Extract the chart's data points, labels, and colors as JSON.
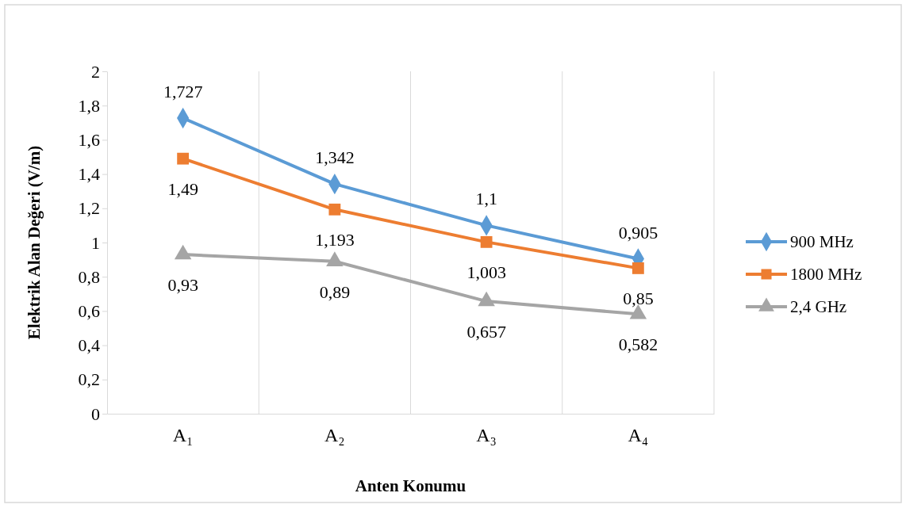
{
  "chart_data": {
    "type": "line",
    "xlabel": "Anten Konumu",
    "ylabel": "Elektrik Alan Değeri (V/m)",
    "categories": [
      "A₁",
      "A₂",
      "A₃",
      "A₄"
    ],
    "series": [
      {
        "name": "900 MHz",
        "color": "#5b9bd5",
        "marker": "diamond",
        "values": [
          1.727,
          1.342,
          1.1,
          0.905
        ],
        "value_labels": [
          "1,727",
          "1,342",
          "1,1",
          "0,905"
        ]
      },
      {
        "name": "1800 MHz",
        "color": "#ed7d31",
        "marker": "square",
        "values": [
          1.49,
          1.193,
          1.003,
          0.85
        ],
        "value_labels": [
          "1,49",
          "1,193",
          "1,003",
          "0,85"
        ]
      },
      {
        "name": "2,4 GHz",
        "color": "#a5a5a5",
        "marker": "triangle",
        "values": [
          0.93,
          0.89,
          0.657,
          0.582
        ],
        "value_labels": [
          "0,93",
          "0,89",
          "0,657",
          "0,582"
        ]
      }
    ],
    "ylim": [
      0,
      2
    ],
    "yticks": [
      0,
      {
        "value": 0.2,
        "label": "0,2"
      },
      {
        "value": 0.4,
        "label": "0,4"
      },
      {
        "value": 0.6,
        "label": "0,6"
      },
      {
        "value": 0.8,
        "label": "0,8"
      },
      1,
      {
        "value": 1.2,
        "label": "1,2"
      },
      {
        "value": 1.4,
        "label": "1,4"
      },
      {
        "value": 1.6,
        "label": "1,6"
      },
      {
        "value": 1.8,
        "label": "1,8"
      },
      2
    ],
    "grid": "x",
    "legend": "right"
  }
}
